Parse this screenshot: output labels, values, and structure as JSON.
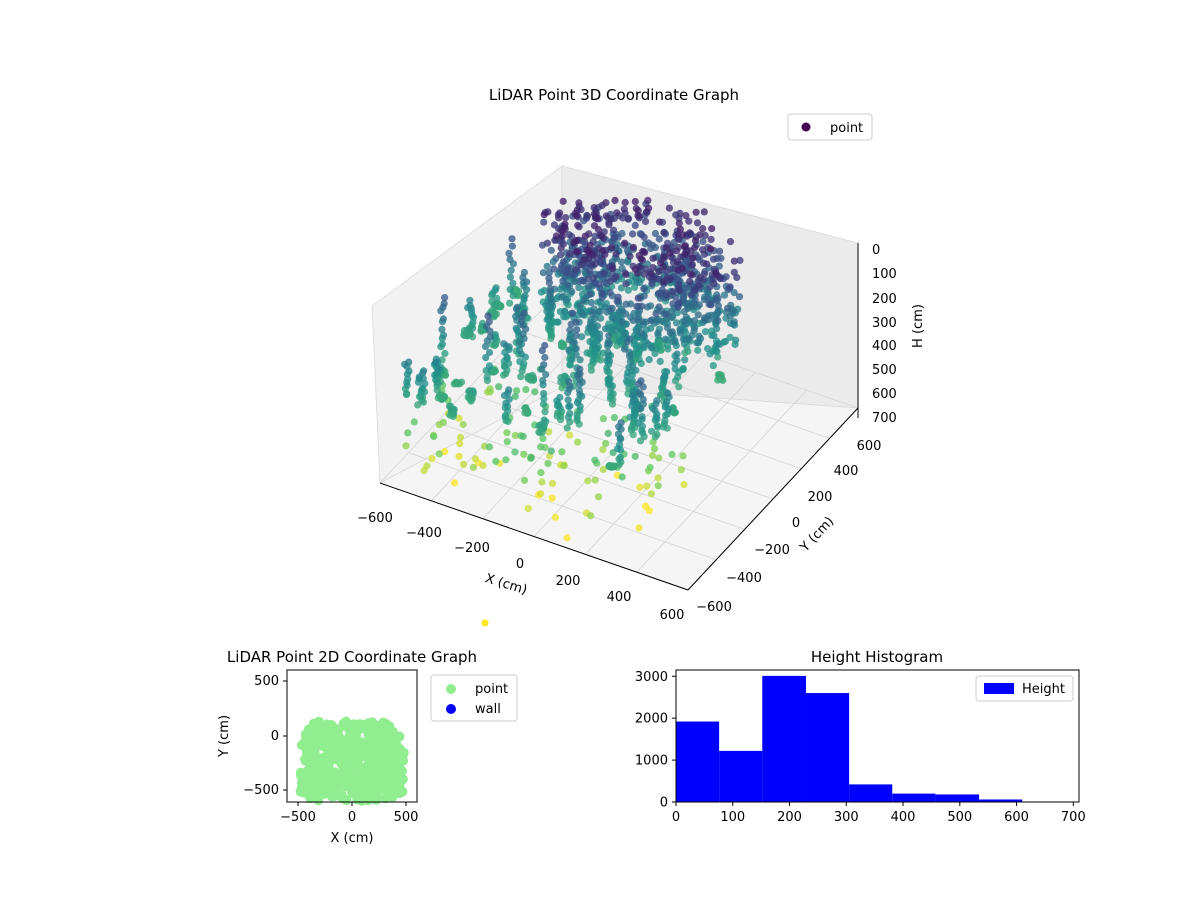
{
  "colors": {
    "viridis_dark": "#440154",
    "viridis_mid": "#21918c",
    "viridis_light": "#fde725",
    "point_2d": "#90ee90",
    "wall_2d": "#0000ff",
    "histogram": "#0000ff",
    "pane": "#f2f2f2",
    "grid": "#cccccc"
  },
  "chart_data": [
    {
      "type": "scatter",
      "projection": "3d",
      "title": "LiDAR Point 3D Coordinate Graph",
      "xlabel": "X (cm)",
      "ylabel": "Y (cm)",
      "zlabel": "H (cm)",
      "xlim": [
        -600,
        600
      ],
      "ylim": [
        -600,
        600
      ],
      "zlim": [
        700,
        0
      ],
      "z_inverted": true,
      "xticks": [
        "−600",
        "−400",
        "−200",
        "0",
        "200",
        "400",
        "600"
      ],
      "yticks": [
        "−600",
        "−400",
        "−200",
        "0",
        "200",
        "400",
        "600"
      ],
      "zticks": [
        "0",
        "100",
        "200",
        "300",
        "400",
        "500",
        "600",
        "700"
      ],
      "colormap": "viridis",
      "legend": {
        "entries": [
          "point"
        ],
        "placement": "upper-right"
      },
      "grid": true
    },
    {
      "type": "scatter",
      "title": "LiDAR Point 2D Coordinate Graph",
      "xlabel": "X (cm)",
      "ylabel": "Y (cm)",
      "xlim": [
        -600,
        600
      ],
      "ylim": [
        -600,
        600
      ],
      "xticks": [
        "−500",
        "0",
        "500"
      ],
      "yticks": [
        "−500",
        "0",
        "500"
      ],
      "series": [
        {
          "name": "point",
          "color": "#90ee90"
        },
        {
          "name": "wall",
          "color": "#0000ff",
          "points": []
        }
      ],
      "legend": {
        "placement": "outside-right"
      }
    },
    {
      "type": "bar",
      "subtype": "histogram",
      "title": "Height Histogram",
      "xlabel": "",
      "ylabel": "",
      "xlim": [
        0,
        710
      ],
      "ylim": [
        0,
        3150
      ],
      "bin_edges": [
        0,
        76,
        152,
        229,
        305,
        381,
        457,
        534,
        610,
        686
      ],
      "values": [
        1920,
        1220,
        3010,
        2600,
        420,
        200,
        180,
        60,
        10
      ],
      "xticks": [
        "0",
        "100",
        "200",
        "300",
        "400",
        "500",
        "600",
        "700"
      ],
      "yticks": [
        "0",
        "1000",
        "2000",
        "3000"
      ],
      "series": [
        {
          "name": "Height",
          "color": "#0000ff"
        }
      ],
      "legend": {
        "placement": "upper-right"
      }
    }
  ]
}
